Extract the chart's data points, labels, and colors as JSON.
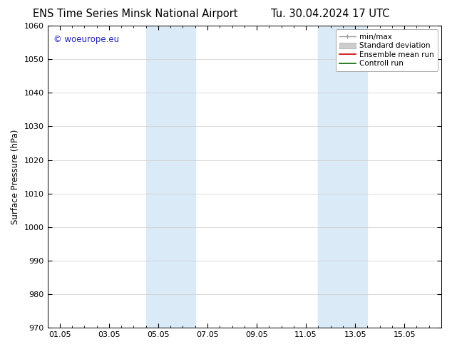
{
  "title_left": "ENS Time Series Minsk National Airport",
  "title_right": "Tu. 30.04.2024 17 UTC",
  "ylabel": "Surface Pressure (hPa)",
  "ylim": [
    970,
    1060
  ],
  "yticks": [
    970,
    980,
    990,
    1000,
    1010,
    1020,
    1030,
    1040,
    1050,
    1060
  ],
  "xtick_labels": [
    "01.05",
    "03.05",
    "05.05",
    "07.05",
    "09.05",
    "11.05",
    "13.05",
    "15.05"
  ],
  "xtick_positions": [
    0,
    2,
    4,
    6,
    8,
    10,
    12,
    14
  ],
  "xlim": [
    -0.5,
    15.5
  ],
  "shaded_regions": [
    {
      "start": 3.5,
      "end": 5.5
    },
    {
      "start": 10.5,
      "end": 12.5
    }
  ],
  "shaded_color": "#daeaf7",
  "background_color": "#ffffff",
  "watermark_text": "© woeurope.eu",
  "watermark_color": "#2222bb",
  "legend_entries": [
    {
      "label": "min/max",
      "color": "#aaaaaa"
    },
    {
      "label": "Standard deviation",
      "color": "#cccccc"
    },
    {
      "label": "Ensemble mean run",
      "color": "#cc0000"
    },
    {
      "label": "Controll run",
      "color": "#006600"
    }
  ],
  "grid_color": "#cccccc",
  "tick_color": "#000000",
  "spine_color": "#000000",
  "title_fontsize": 10.5,
  "label_fontsize": 8.5,
  "tick_fontsize": 8,
  "legend_fontsize": 7.5,
  "fig_width": 6.34,
  "fig_height": 4.9,
  "dpi": 100
}
